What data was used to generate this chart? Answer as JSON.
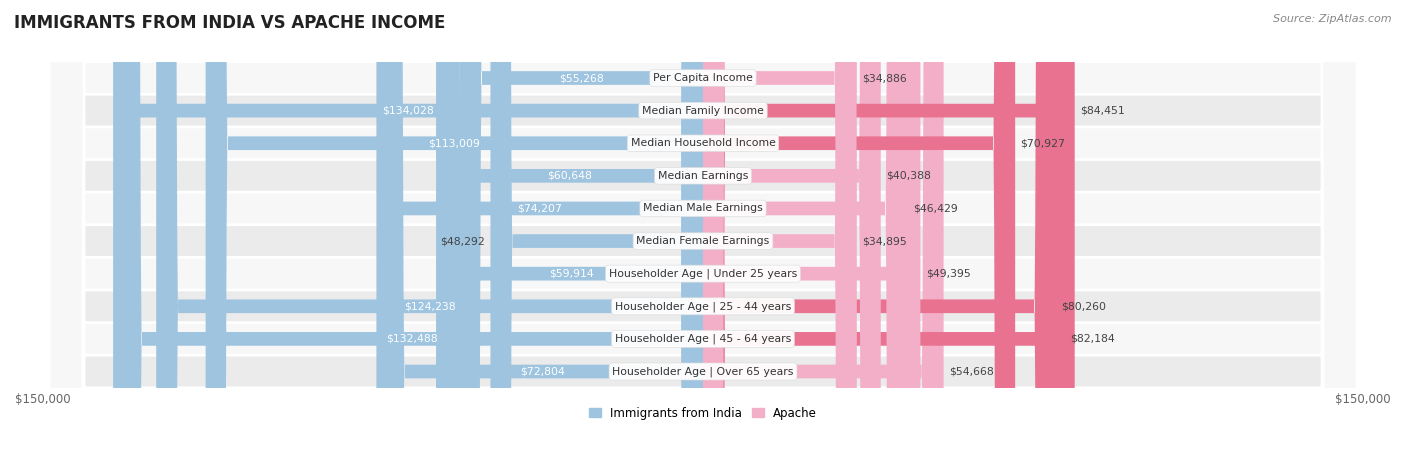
{
  "title": "IMMIGRANTS FROM INDIA VS APACHE INCOME",
  "source": "Source: ZipAtlas.com",
  "categories": [
    "Per Capita Income",
    "Median Family Income",
    "Median Household Income",
    "Median Earnings",
    "Median Male Earnings",
    "Median Female Earnings",
    "Householder Age | Under 25 years",
    "Householder Age | 25 - 44 years",
    "Householder Age | 45 - 64 years",
    "Householder Age | Over 65 years"
  ],
  "india_values": [
    55268,
    134028,
    113009,
    60648,
    74207,
    48292,
    59914,
    124238,
    132488,
    72804
  ],
  "apache_values": [
    34886,
    84451,
    70927,
    40388,
    46429,
    34895,
    49395,
    80260,
    82184,
    54668
  ],
  "india_color": "#9ec4e0",
  "apache_color_light": "#f4afc8",
  "apache_color_dark": "#e8728f",
  "axis_max": 150000,
  "row_bg_odd": "#ebebeb",
  "row_bg_even": "#f7f7f7",
  "legend_india": "Immigrants from India",
  "legend_apache": "Apache",
  "inside_label_threshold": 80000
}
